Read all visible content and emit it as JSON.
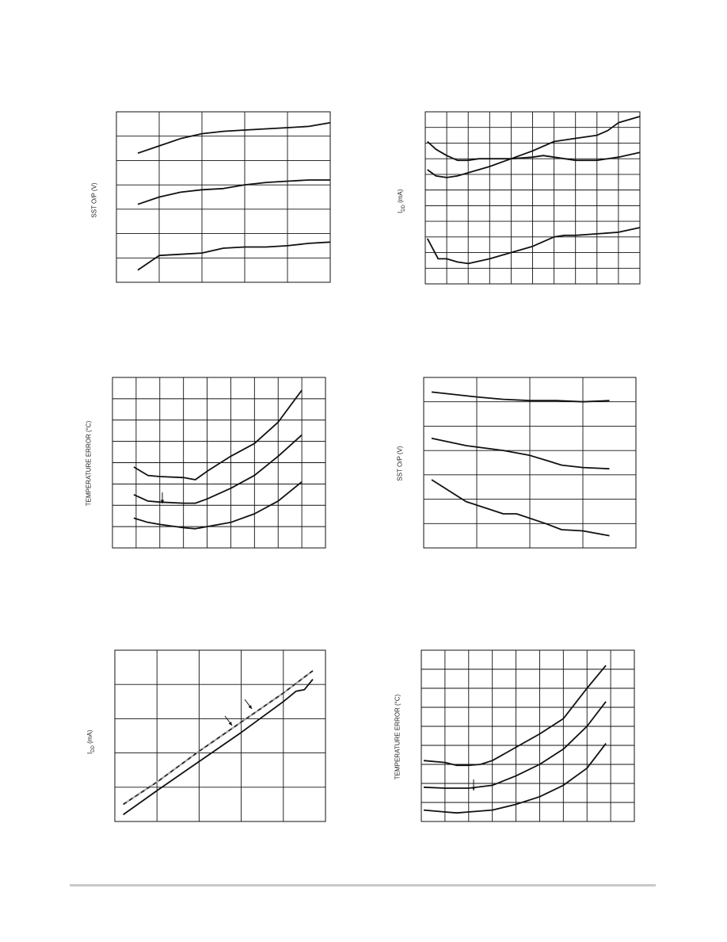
{
  "chart_data": [
    {
      "id": "c1",
      "type": "line",
      "ylabel": "SST O/P (V)",
      "xlim": [
        0,
        5
      ],
      "ylim": [
        0,
        7
      ],
      "xdiv": 5,
      "ydiv": 7,
      "series": [
        {
          "values": [
            [
              0.5,
              5.3
            ],
            [
              1,
              5.6
            ],
            [
              1.5,
              5.9
            ],
            [
              2,
              6.1
            ],
            [
              2.5,
              6.2
            ],
            [
              3,
              6.25
            ],
            [
              3.5,
              6.3
            ],
            [
              4,
              6.35
            ],
            [
              4.5,
              6.4
            ],
            [
              5,
              6.55
            ]
          ],
          "dashed": false
        },
        {
          "values": [
            [
              0.5,
              3.2
            ],
            [
              1,
              3.5
            ],
            [
              1.5,
              3.7
            ],
            [
              2,
              3.8
            ],
            [
              2.5,
              3.85
            ],
            [
              3,
              4.0
            ],
            [
              3.5,
              4.1
            ],
            [
              4,
              4.15
            ],
            [
              4.5,
              4.2
            ],
            [
              5,
              4.2
            ]
          ],
          "dashed": false
        },
        {
          "values": [
            [
              0.5,
              0.5
            ],
            [
              1,
              1.1
            ],
            [
              1.5,
              1.15
            ],
            [
              2,
              1.2
            ],
            [
              2.5,
              1.4
            ],
            [
              3,
              1.45
            ],
            [
              3.5,
              1.45
            ],
            [
              4,
              1.5
            ],
            [
              4.5,
              1.6
            ],
            [
              5,
              1.65
            ]
          ],
          "dashed": false
        }
      ]
    },
    {
      "id": "c2",
      "type": "line",
      "ylabel": "I_DD (mA)",
      "xlim": [
        0,
        10
      ],
      "ylim": [
        0,
        11
      ],
      "xdiv": 10,
      "ydiv": 11,
      "series": [
        {
          "values": [
            [
              0.1,
              9.1
            ],
            [
              0.5,
              8.6
            ],
            [
              1,
              8.2
            ],
            [
              1.5,
              7.9
            ],
            [
              2,
              7.9
            ],
            [
              2.5,
              8.0
            ],
            [
              3,
              8.0
            ],
            [
              4,
              8.0
            ],
            [
              5,
              8.1
            ],
            [
              5.5,
              8.2
            ],
            [
              6,
              8.1
            ],
            [
              7,
              7.9
            ],
            [
              8,
              7.9
            ],
            [
              9,
              8.1
            ],
            [
              10,
              8.4
            ]
          ],
          "dashed": false
        },
        {
          "values": [
            [
              0.1,
              7.3
            ],
            [
              0.5,
              6.9
            ],
            [
              1,
              6.8
            ],
            [
              1.5,
              6.9
            ],
            [
              2,
              7.1
            ],
            [
              3,
              7.5
            ],
            [
              4,
              8.0
            ],
            [
              5,
              8.5
            ],
            [
              6,
              9.1
            ],
            [
              7,
              9.3
            ],
            [
              8,
              9.5
            ],
            [
              8.5,
              9.8
            ],
            [
              9,
              10.3
            ],
            [
              10,
              10.7
            ]
          ],
          "dashed": false
        },
        {
          "values": [
            [
              0.1,
              2.9
            ],
            [
              0.6,
              1.6
            ],
            [
              1,
              1.6
            ],
            [
              1.5,
              1.4
            ],
            [
              2,
              1.3
            ],
            [
              3,
              1.6
            ],
            [
              4,
              2.0
            ],
            [
              5,
              2.4
            ],
            [
              6,
              3.0
            ],
            [
              6.5,
              3.1
            ],
            [
              7,
              3.1
            ],
            [
              8,
              3.2
            ],
            [
              9,
              3.3
            ],
            [
              10,
              3.6
            ]
          ],
          "dashed": false
        }
      ]
    },
    {
      "id": "c3",
      "type": "line",
      "ylabel": "TEMPERATURE ERROR (°C)",
      "xlim": [
        0,
        9
      ],
      "ylim": [
        0,
        8
      ],
      "xdiv": 9,
      "ydiv": 8,
      "series": [
        {
          "values": [
            [
              0.9,
              3.8
            ],
            [
              1.5,
              3.4
            ],
            [
              2,
              3.35
            ],
            [
              3,
              3.3
            ],
            [
              3.5,
              3.2
            ],
            [
              4,
              3.6
            ],
            [
              5,
              4.3
            ],
            [
              6,
              4.9
            ],
            [
              7,
              5.9
            ],
            [
              8,
              7.4
            ]
          ],
          "dashed": false
        },
        {
          "values": [
            [
              0.9,
              2.5
            ],
            [
              1.5,
              2.2
            ],
            [
              2,
              2.15
            ],
            [
              3,
              2.1
            ],
            [
              3.5,
              2.1
            ],
            [
              4,
              2.3
            ],
            [
              5,
              2.8
            ],
            [
              6,
              3.4
            ],
            [
              7,
              4.3
            ],
            [
              8,
              5.3
            ]
          ],
          "dashed": false
        },
        {
          "values": [
            [
              0.9,
              1.4
            ],
            [
              1.5,
              1.2
            ],
            [
              2,
              1.1
            ],
            [
              3,
              0.95
            ],
            [
              3.5,
              0.9
            ],
            [
              4,
              1.0
            ],
            [
              5,
              1.2
            ],
            [
              6,
              1.6
            ],
            [
              7,
              2.2
            ],
            [
              8,
              3.1
            ]
          ],
          "dashed": false
        }
      ]
    },
    {
      "id": "c4",
      "type": "line",
      "ylabel": "SST O/P (V)",
      "xlim": [
        0,
        4
      ],
      "ylim": [
        0,
        7
      ],
      "xdiv": 4,
      "ydiv": 7,
      "series": [
        {
          "values": [
            [
              0.15,
              6.4
            ],
            [
              1,
              6.2
            ],
            [
              1.5,
              6.1
            ],
            [
              2,
              6.05
            ],
            [
              2.5,
              6.05
            ],
            [
              3,
              6.0
            ],
            [
              3.5,
              6.05
            ]
          ],
          "dashed": false
        },
        {
          "values": [
            [
              0.15,
              4.5
            ],
            [
              0.8,
              4.2
            ],
            [
              1.5,
              4.0
            ],
            [
              2,
              3.8
            ],
            [
              2.3,
              3.6
            ],
            [
              2.6,
              3.4
            ],
            [
              3,
              3.3
            ],
            [
              3.5,
              3.25
            ]
          ],
          "dashed": false
        },
        {
          "values": [
            [
              0.15,
              2.8
            ],
            [
              0.8,
              1.9
            ],
            [
              1.5,
              1.4
            ],
            [
              1.75,
              1.4
            ],
            [
              2.3,
              1.0
            ],
            [
              2.6,
              0.75
            ],
            [
              3,
              0.7
            ],
            [
              3.5,
              0.5
            ]
          ],
          "dashed": false
        }
      ]
    },
    {
      "id": "c5",
      "type": "line",
      "ylabel": "I_DD (mA)",
      "xlim": [
        0,
        5
      ],
      "ylim": [
        0,
        5
      ],
      "xdiv": 5,
      "ydiv": 5,
      "series": [
        {
          "values": [
            [
              0.2,
              0.2
            ],
            [
              1,
              0.9
            ],
            [
              2,
              1.75
            ],
            [
              3,
              2.6
            ],
            [
              4,
              3.5
            ],
            [
              4.3,
              3.8
            ],
            [
              4.5,
              3.85
            ],
            [
              4.7,
              4.15
            ]
          ],
          "dashed": false
        },
        {
          "values": [
            [
              0.2,
              0.5
            ],
            [
              1,
              1.15
            ],
            [
              2,
              2.05
            ],
            [
              3,
              2.9
            ],
            [
              4,
              3.75
            ],
            [
              4.7,
              4.4
            ]
          ],
          "dashed": true
        }
      ]
    },
    {
      "id": "c6",
      "type": "line",
      "ylabel": "TEMPERATURE ERROR (°C)",
      "xlim": [
        0,
        9
      ],
      "ylim": [
        0,
        9
      ],
      "xdiv": 9,
      "ydiv": 9,
      "series": [
        {
          "values": [
            [
              0.1,
              3.2
            ],
            [
              1,
              3.1
            ],
            [
              1.5,
              2.95
            ],
            [
              2,
              2.95
            ],
            [
              2.5,
              3.0
            ],
            [
              3,
              3.2
            ],
            [
              4,
              3.9
            ],
            [
              5,
              4.6
            ],
            [
              6,
              5.4
            ],
            [
              7,
              7.0
            ],
            [
              7.8,
              8.2
            ]
          ],
          "dashed": false
        },
        {
          "values": [
            [
              0.1,
              1.8
            ],
            [
              1,
              1.75
            ],
            [
              1.5,
              1.75
            ],
            [
              2,
              1.75
            ],
            [
              3,
              1.9
            ],
            [
              4,
              2.4
            ],
            [
              5,
              3.0
            ],
            [
              6,
              3.8
            ],
            [
              7,
              5.0
            ],
            [
              7.8,
              6.3
            ]
          ],
          "dashed": false
        },
        {
          "values": [
            [
              0.1,
              0.6
            ],
            [
              1,
              0.5
            ],
            [
              1.5,
              0.45
            ],
            [
              2,
              0.5
            ],
            [
              3,
              0.6
            ],
            [
              4,
              0.9
            ],
            [
              5,
              1.3
            ],
            [
              6,
              1.9
            ],
            [
              7,
              2.8
            ],
            [
              7.8,
              4.1
            ]
          ],
          "dashed": false
        }
      ]
    }
  ]
}
